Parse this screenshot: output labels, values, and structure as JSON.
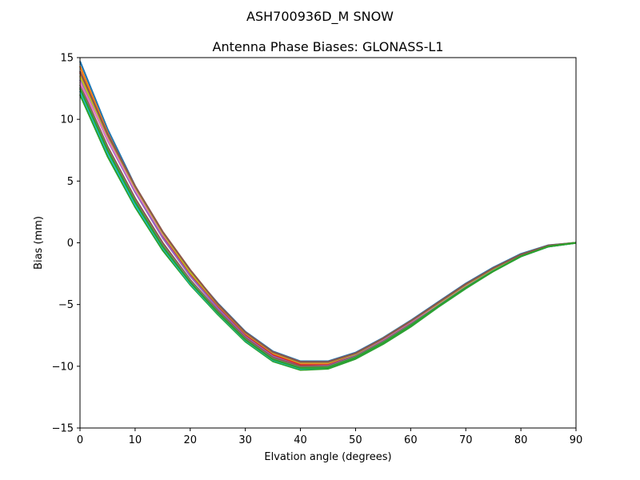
{
  "figure": {
    "suptitle": "ASH700936D_M    SNOW"
  },
  "chart_data": {
    "type": "line",
    "title": "Antenna Phase Biases: GLONASS-L1",
    "xlabel": "Elvation angle (degrees)",
    "ylabel": "Bias (mm)",
    "xlim": [
      0,
      90
    ],
    "ylim": [
      -15,
      15
    ],
    "xticks": [
      0,
      10,
      20,
      30,
      40,
      50,
      60,
      70,
      80,
      90
    ],
    "yticks": [
      -15,
      -10,
      -5,
      0,
      5,
      10,
      15
    ],
    "ytick_labels": [
      "−15",
      "−10",
      "−5",
      "0",
      "5",
      "10",
      "15"
    ],
    "grid": false,
    "legend": "none",
    "x": [
      0,
      5,
      10,
      15,
      20,
      25,
      30,
      35,
      40,
      45,
      50,
      55,
      60,
      65,
      70,
      75,
      80,
      85,
      90
    ],
    "series": [
      {
        "color": "#1f77b4",
        "values": [
          14.7,
          9.2,
          4.6,
          0.8,
          -2.3,
          -4.9,
          -7.2,
          -8.8,
          -9.6,
          -9.6,
          -8.9,
          -7.7,
          -6.3,
          -4.8,
          -3.3,
          -2.0,
          -0.9,
          -0.2,
          0.0
        ]
      },
      {
        "color": "#ff7f0e",
        "values": [
          14.3,
          8.9,
          4.4,
          0.6,
          -2.5,
          -5.1,
          -7.4,
          -9.0,
          -9.8,
          -9.8,
          -9.0,
          -7.8,
          -6.4,
          -4.9,
          -3.4,
          -2.1,
          -1.0,
          -0.25,
          0.0
        ]
      },
      {
        "color": "#2ca02c",
        "values": [
          12.0,
          7.0,
          2.9,
          -0.6,
          -3.4,
          -5.8,
          -8.0,
          -9.6,
          -10.3,
          -10.2,
          -9.4,
          -8.2,
          -6.8,
          -5.2,
          -3.7,
          -2.3,
          -1.1,
          -0.3,
          0.0
        ]
      },
      {
        "color": "#d62728",
        "values": [
          13.8,
          8.6,
          4.3,
          0.5,
          -2.6,
          -5.2,
          -7.5,
          -9.1,
          -9.9,
          -9.9,
          -9.1,
          -7.9,
          -6.5,
          -5.0,
          -3.5,
          -2.15,
          -1.0,
          -0.25,
          0.0
        ]
      },
      {
        "color": "#9467bd",
        "values": [
          13.2,
          8.3,
          4.1,
          0.4,
          -2.7,
          -5.3,
          -7.6,
          -9.2,
          -10.0,
          -9.95,
          -9.15,
          -7.95,
          -6.55,
          -5.05,
          -3.55,
          -2.2,
          -1.05,
          -0.28,
          0.0
        ]
      },
      {
        "color": "#8c564b",
        "values": [
          12.8,
          7.8,
          3.6,
          0.0,
          -3.0,
          -5.5,
          -7.7,
          -9.3,
          -10.0,
          -10.0,
          -9.2,
          -8.0,
          -6.6,
          -5.1,
          -3.6,
          -2.2,
          -1.05,
          -0.28,
          0.0
        ]
      },
      {
        "color": "#e377c2",
        "values": [
          13.0,
          8.4,
          4.3,
          0.7,
          -2.3,
          -5.0,
          -7.3,
          -8.9,
          -9.7,
          -9.7,
          -9.0,
          -7.8,
          -6.4,
          -4.95,
          -3.45,
          -2.1,
          -1.0,
          -0.25,
          0.0
        ]
      },
      {
        "color": "#7f7f7f",
        "values": [
          12.6,
          7.6,
          3.4,
          -0.2,
          -3.1,
          -5.6,
          -7.8,
          -9.4,
          -10.1,
          -10.05,
          -9.25,
          -8.05,
          -6.65,
          -5.1,
          -3.6,
          -2.25,
          -1.08,
          -0.3,
          0.0
        ]
      },
      {
        "color": "#bcbd22",
        "values": [
          13.5,
          8.7,
          4.5,
          0.8,
          -2.4,
          -5.0,
          -7.3,
          -8.9,
          -9.7,
          -9.7,
          -9.0,
          -7.75,
          -6.35,
          -4.9,
          -3.4,
          -2.1,
          -0.98,
          -0.24,
          0.0
        ]
      },
      {
        "color": "#17becf",
        "values": [
          12.3,
          7.3,
          3.1,
          -0.4,
          -3.3,
          -5.7,
          -7.9,
          -9.5,
          -10.2,
          -10.1,
          -9.3,
          -8.1,
          -6.7,
          -5.15,
          -3.65,
          -2.28,
          -1.1,
          -0.3,
          0.0
        ]
      },
      {
        "color": "#8c564b",
        "values": [
          13.9,
          8.8,
          4.6,
          0.9,
          -2.2,
          -4.95,
          -7.25,
          -8.85,
          -9.65,
          -9.65,
          -8.95,
          -7.75,
          -6.35,
          -4.85,
          -3.35,
          -2.05,
          -0.95,
          -0.22,
          0.0
        ]
      },
      {
        "color": "#2ca02c",
        "values": [
          12.5,
          7.5,
          3.3,
          -0.3,
          -3.2,
          -5.65,
          -7.85,
          -9.45,
          -10.15,
          -10.1,
          -9.3,
          -8.1,
          -6.7,
          -5.15,
          -3.65,
          -2.3,
          -1.1,
          -0.3,
          0.0
        ]
      }
    ]
  }
}
